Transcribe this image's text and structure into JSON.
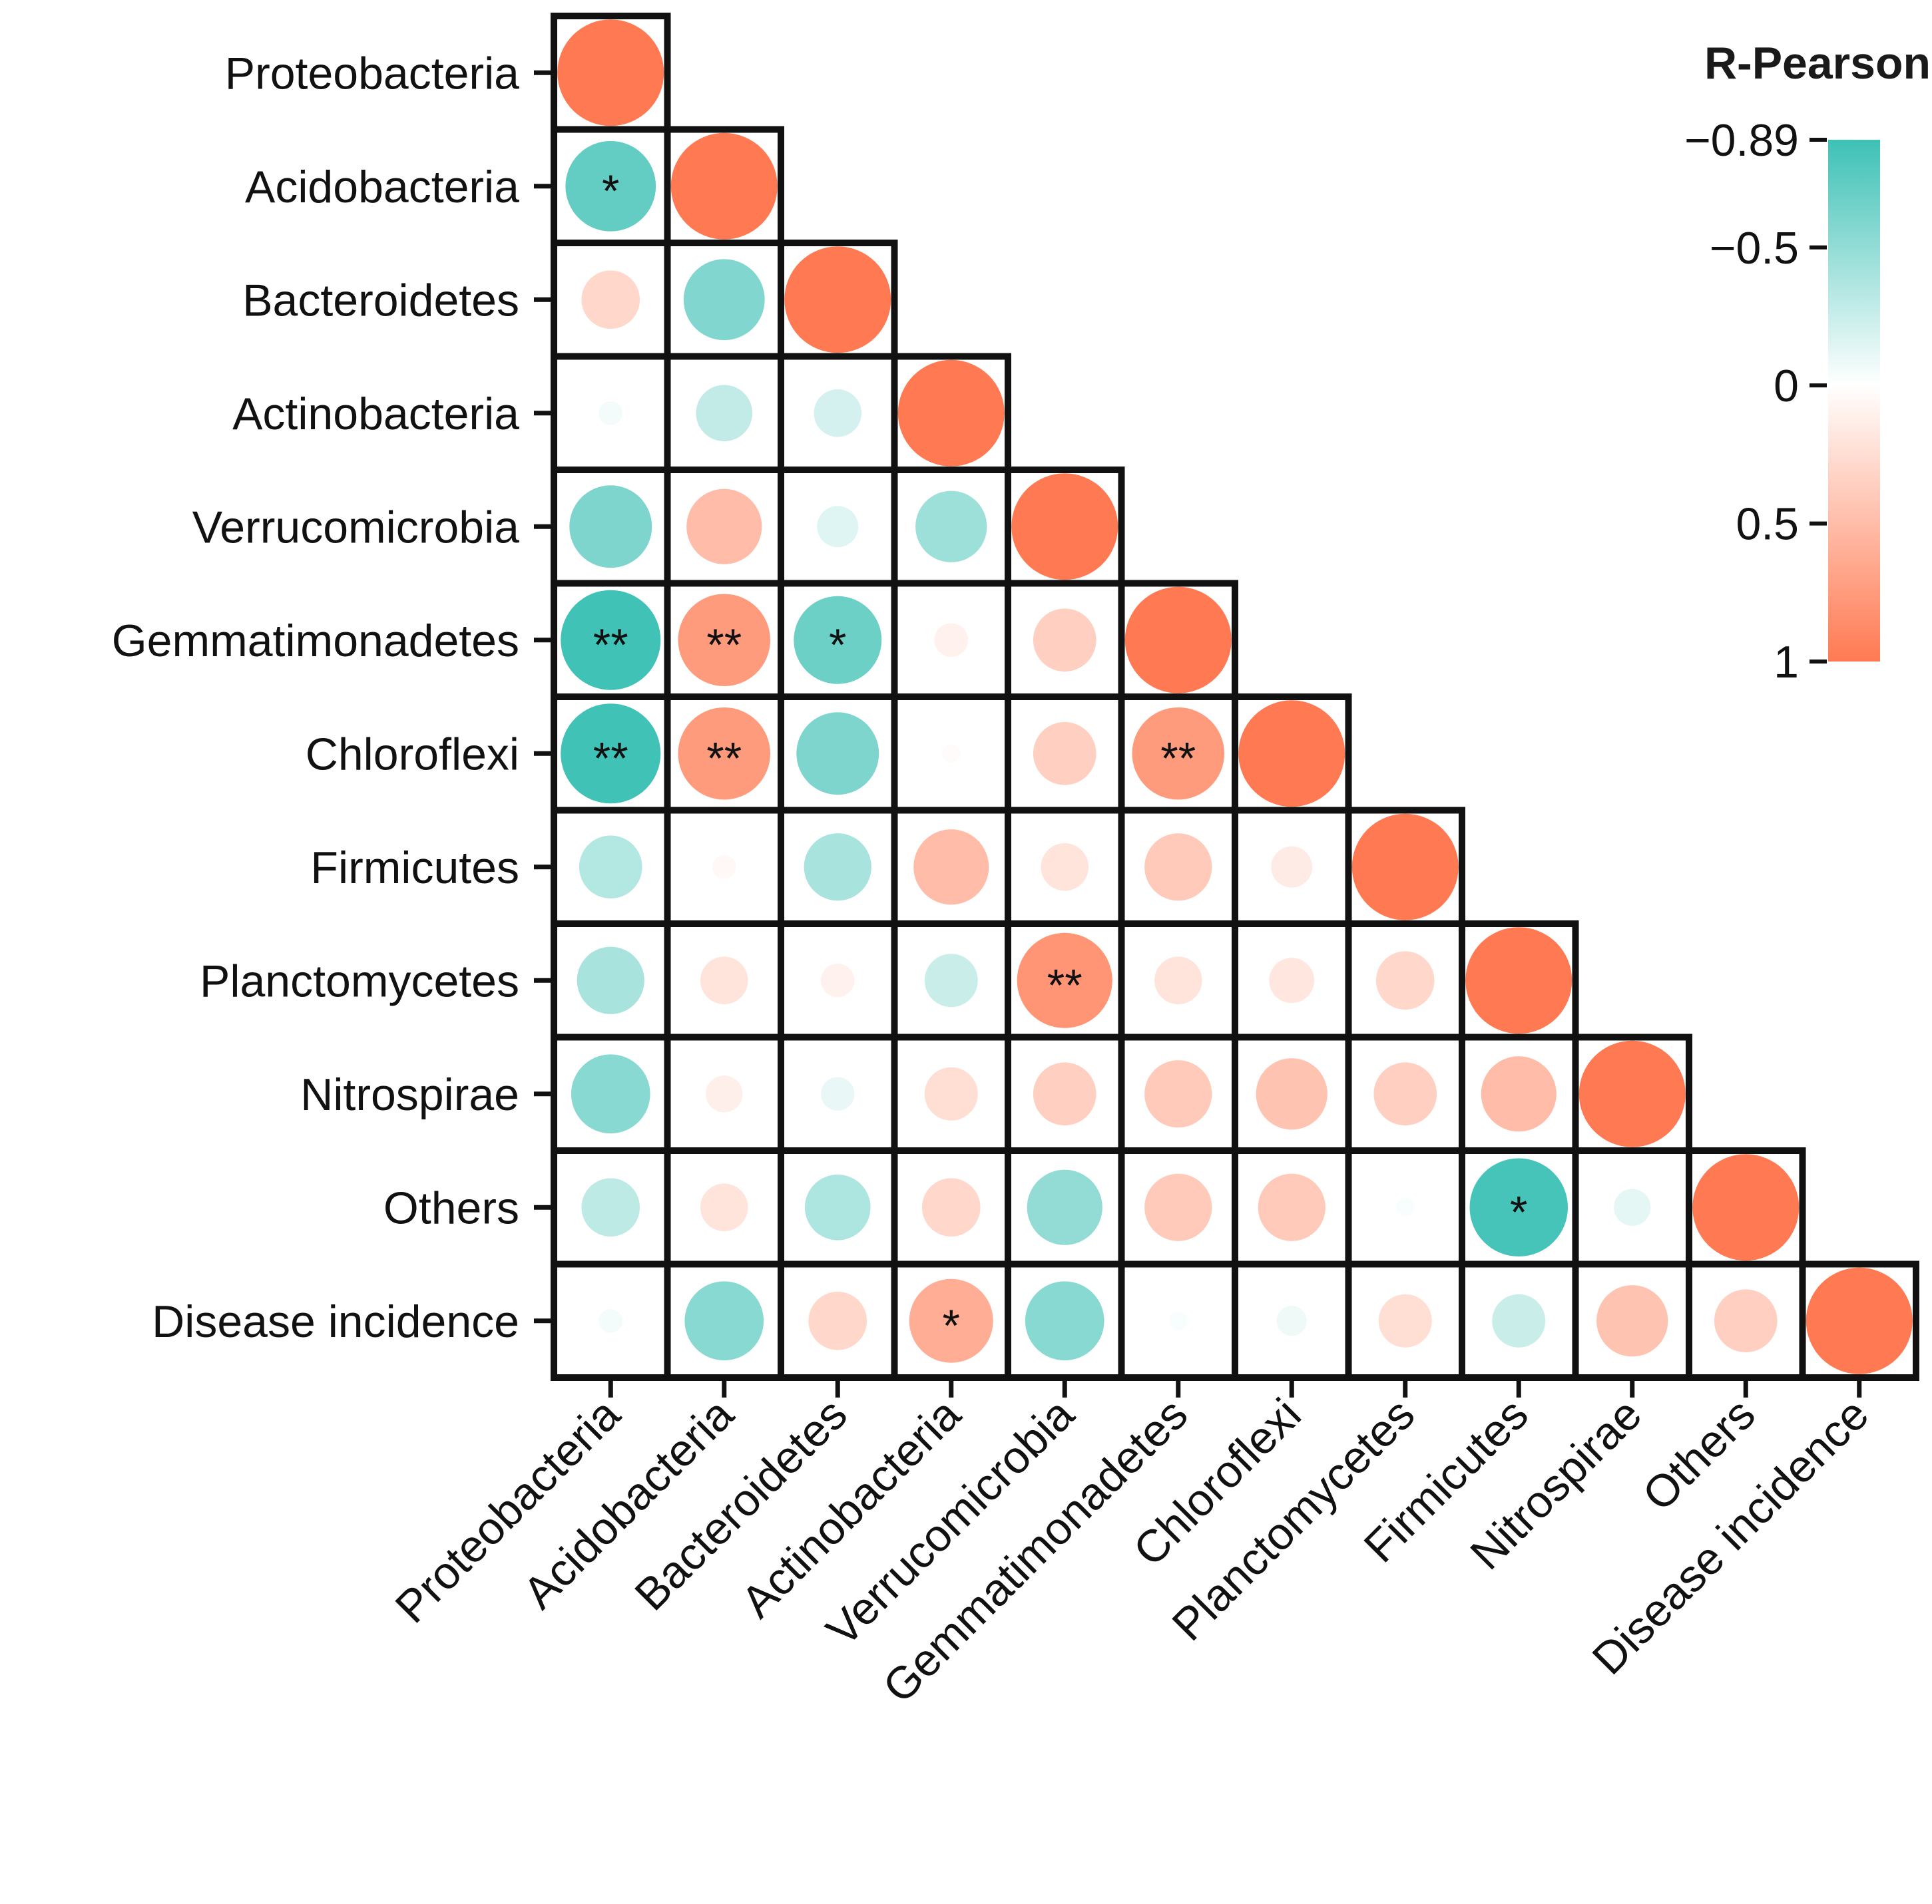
{
  "chart_data": {
    "type": "heatmap",
    "subtype": "lower-triangle correlation matrix with sized circles",
    "labels": [
      "Proteobacteria",
      "Acidobacteria",
      "Bacteroidetes",
      "Actinobacteria",
      "Verrucomicrobia",
      "Gemmatimonadetes",
      "Chloroflexi",
      "Firmicutes",
      "Planctomycetes",
      "Nitrospirae",
      "Others",
      "Disease incidence"
    ],
    "x_labels": [
      "Proteobacteria",
      "Acidobacteria",
      "Bacteroidetes",
      "Actinobacteria",
      "Verrucomicrobia",
      "Gemmatimonadetes",
      "Chloroflexi",
      "Planctomycetes",
      "Firmicutes",
      "Nitrospirae",
      "Others",
      "Disease incidence"
    ],
    "matrix": [
      [
        1
      ],
      [
        -0.72,
        1
      ],
      [
        0.3,
        -0.58,
        1
      ],
      [
        -0.05,
        -0.28,
        -0.2,
        1
      ],
      [
        -0.6,
        0.5,
        -0.15,
        -0.45,
        1
      ],
      [
        -0.88,
        0.75,
        -0.68,
        0.1,
        0.35,
        1
      ],
      [
        -0.88,
        0.75,
        -0.6,
        0.03,
        0.35,
        0.75,
        1
      ],
      [
        -0.35,
        0.05,
        -0.4,
        0.5,
        0.2,
        0.4,
        0.15,
        1
      ],
      [
        -0.4,
        0.2,
        0.1,
        -0.25,
        0.8,
        0.2,
        0.18,
        0.3,
        1
      ],
      [
        -0.55,
        0.12,
        -0.1,
        0.25,
        0.35,
        0.4,
        0.45,
        0.35,
        0.5,
        1
      ],
      [
        -0.3,
        0.2,
        -0.38,
        0.3,
        -0.5,
        0.4,
        0.4,
        -0.03,
        -0.85,
        -0.12,
        1
      ],
      [
        -0.05,
        -0.55,
        0.3,
        0.62,
        -0.55,
        -0.03,
        -0.08,
        0.25,
        -0.25,
        0.45,
        0.35,
        1
      ]
    ],
    "significance": [
      [
        ""
      ],
      [
        "*",
        ""
      ],
      [
        "",
        "",
        ""
      ],
      [
        "",
        "",
        "",
        ""
      ],
      [
        "",
        "",
        "",
        "",
        ""
      ],
      [
        "**",
        "**",
        "*",
        "",
        "",
        ""
      ],
      [
        "**",
        "**",
        "",
        "",
        "",
        "**",
        ""
      ],
      [
        "",
        "",
        "",
        "",
        "",
        "",
        "",
        ""
      ],
      [
        "",
        "",
        "",
        "",
        "**",
        "",
        "",
        "",
        ""
      ],
      [
        "",
        "",
        "",
        "",
        "",
        "",
        "",
        "",
        "",
        ""
      ],
      [
        "",
        "",
        "",
        "",
        "",
        "",
        "",
        "",
        "*",
        "",
        ""
      ],
      [
        "",
        "",
        "",
        "*",
        "",
        "",
        "",
        "",
        "",
        "",
        "",
        ""
      ]
    ],
    "legend": {
      "title": "R-Pearson",
      "min": -0.89,
      "max": 1,
      "ticks": [
        -0.89,
        -0.5,
        0,
        0.5,
        1
      ],
      "tick_labels": [
        "−0.89",
        "−0.5",
        "0",
        "0.5",
        "1"
      ],
      "negative_color": "#3ec1b6",
      "zero_color": "#ffffff",
      "positive_color": "#ff7a52",
      "placement": "top-right"
    }
  }
}
